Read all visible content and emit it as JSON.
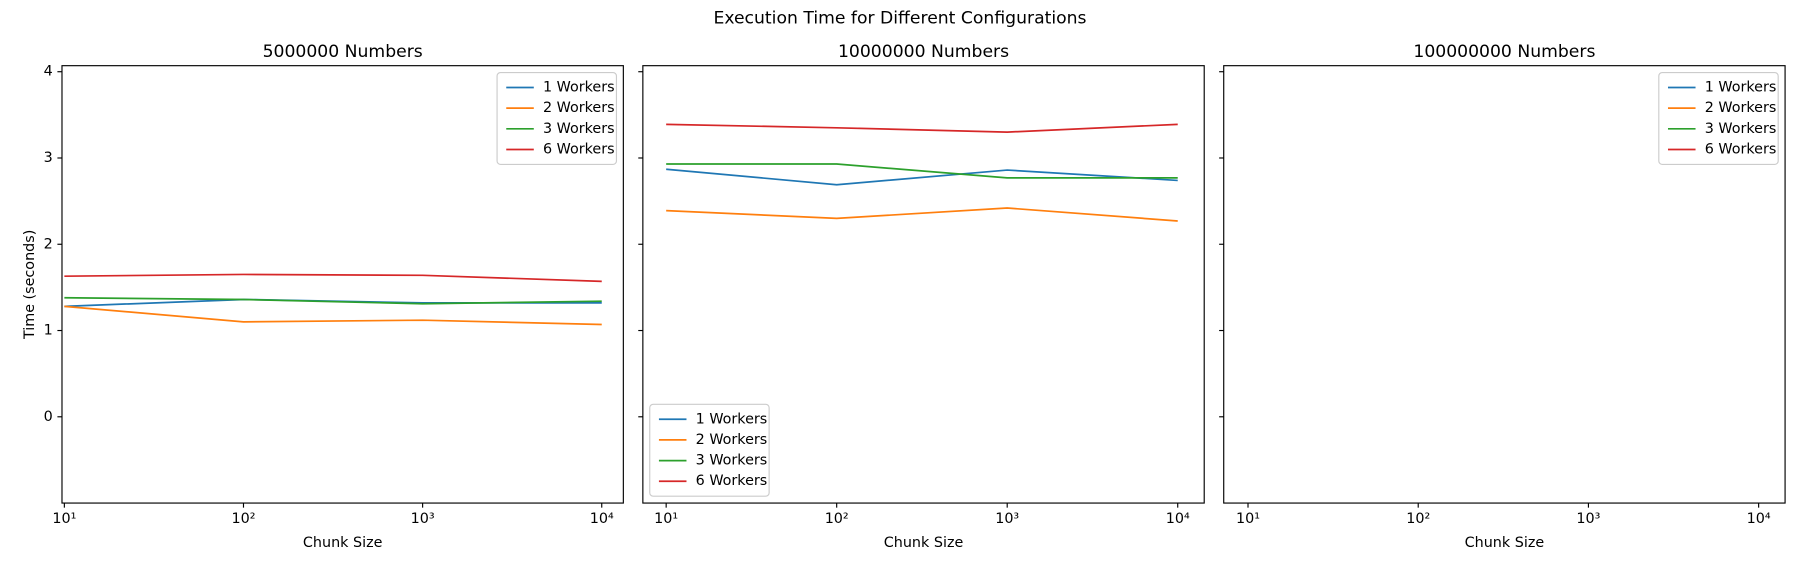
{
  "title": "Execution Time for Different Configurations",
  "chart_data": [
    {
      "type": "line",
      "title": "5000000 Numbers",
      "xlabel": "Chunk Size",
      "ylabel": "Time (seconds)",
      "xscale": "log",
      "x": [
        10,
        100,
        1000,
        10000
      ],
      "xlim": [
        9.7,
        13200
      ],
      "ylim": [
        -1.0,
        4.07
      ],
      "xticks": [
        {
          "value": 10,
          "label": "10¹"
        },
        {
          "value": 100,
          "label": "10²"
        },
        {
          "value": 1000,
          "label": "10³"
        },
        {
          "value": 10000,
          "label": "10⁴"
        }
      ],
      "yticks": [
        0,
        1,
        2,
        3,
        4
      ],
      "legend": "upper right",
      "series": [
        {
          "name": "1 Workers",
          "color": "#1f77b4",
          "values": [
            1.28,
            1.36,
            1.32,
            1.32
          ]
        },
        {
          "name": "2 Workers",
          "color": "#ff7f0e",
          "values": [
            1.28,
            1.1,
            1.12,
            1.07
          ]
        },
        {
          "name": "3 Workers",
          "color": "#2ca02c",
          "values": [
            1.38,
            1.36,
            1.31,
            1.34
          ]
        },
        {
          "name": "6 Workers",
          "color": "#d62728",
          "values": [
            1.63,
            1.65,
            1.64,
            1.57
          ]
        }
      ]
    },
    {
      "type": "line",
      "title": "10000000 Numbers",
      "xlabel": "Chunk Size",
      "xscale": "log",
      "x": [
        10,
        100,
        1000,
        10000
      ],
      "xlim": [
        7.3,
        14300
      ],
      "ylim": [
        -1.0,
        4.07
      ],
      "xticks": [
        {
          "value": 10,
          "label": "10¹"
        },
        {
          "value": 100,
          "label": "10²"
        },
        {
          "value": 1000,
          "label": "10³"
        },
        {
          "value": 10000,
          "label": "10⁴"
        }
      ],
      "legend": "lower left",
      "series": [
        {
          "name": "1 Workers",
          "color": "#1f77b4",
          "values": [
            2.87,
            2.69,
            2.86,
            2.74
          ]
        },
        {
          "name": "2 Workers",
          "color": "#ff7f0e",
          "values": [
            2.39,
            2.3,
            2.42,
            2.27
          ]
        },
        {
          "name": "3 Workers",
          "color": "#2ca02c",
          "values": [
            2.93,
            2.93,
            2.77,
            2.77
          ]
        },
        {
          "name": "6 Workers",
          "color": "#d62728",
          "values": [
            3.39,
            3.35,
            3.3,
            3.39
          ]
        }
      ]
    },
    {
      "type": "line",
      "title": "100000000 Numbers",
      "xlabel": "Chunk Size",
      "xscale": "log",
      "x": [
        10,
        100,
        1000,
        10000
      ],
      "xlim": [
        7.2,
        14300
      ],
      "ylim": [
        -1.0,
        4.07
      ],
      "xticks": [
        {
          "value": 10,
          "label": "10¹"
        },
        {
          "value": 100,
          "label": "10²"
        },
        {
          "value": 1000,
          "label": "10³"
        },
        {
          "value": 10000,
          "label": "10⁴"
        }
      ],
      "legend": "upper right",
      "series": [
        {
          "name": "1 Workers",
          "color": "#1f77b4",
          "values": [
            null,
            null,
            null,
            null
          ]
        },
        {
          "name": "2 Workers",
          "color": "#ff7f0e",
          "values": [
            null,
            null,
            null,
            null
          ]
        },
        {
          "name": "3 Workers",
          "color": "#2ca02c",
          "values": [
            null,
            null,
            null,
            null
          ]
        },
        {
          "name": "6 Workers",
          "color": "#d62728",
          "values": [
            null,
            null,
            null,
            null
          ]
        }
      ]
    }
  ]
}
